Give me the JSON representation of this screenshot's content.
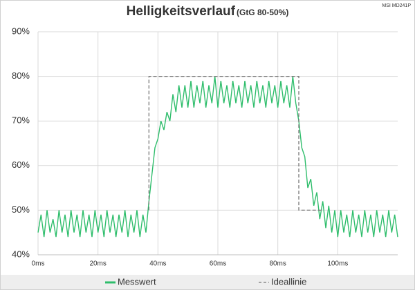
{
  "chart_data": {
    "type": "line",
    "title": "Helligkeitsverlauf",
    "subtitle": "(GtG 80-50%)",
    "watermark": "MSI MD241P",
    "xlim": [
      0,
      120
    ],
    "ylim": [
      40,
      90
    ],
    "grid": true,
    "xticks": [
      {
        "value": 0,
        "label": "0ms"
      },
      {
        "value": 20,
        "label": "20ms"
      },
      {
        "value": 40,
        "label": "40ms"
      },
      {
        "value": 60,
        "label": "60ms"
      },
      {
        "value": 80,
        "label": "80ms"
      },
      {
        "value": 100,
        "label": "100ms"
      }
    ],
    "yticks": [
      {
        "value": 40,
        "label": "40%"
      },
      {
        "value": 50,
        "label": "50%"
      },
      {
        "value": 60,
        "label": "60%"
      },
      {
        "value": 70,
        "label": "70%"
      },
      {
        "value": 80,
        "label": "80%"
      },
      {
        "value": 90,
        "label": "90%"
      }
    ],
    "series": [
      {
        "name": "Messwert",
        "color": "#2ebd6b",
        "dash": false,
        "x": [
          0,
          1,
          2,
          3,
          4,
          5,
          6,
          7,
          8,
          9,
          10,
          11,
          12,
          13,
          14,
          15,
          16,
          17,
          18,
          19,
          20,
          21,
          22,
          23,
          24,
          25,
          26,
          27,
          28,
          29,
          30,
          31,
          32,
          33,
          34,
          35,
          36,
          37,
          38,
          39,
          40,
          41,
          42,
          43,
          44,
          45,
          46,
          47,
          48,
          49,
          50,
          51,
          52,
          53,
          54,
          55,
          56,
          57,
          58,
          59,
          60,
          61,
          62,
          63,
          64,
          65,
          66,
          67,
          68,
          69,
          70,
          71,
          72,
          73,
          74,
          75,
          76,
          77,
          78,
          79,
          80,
          81,
          82,
          83,
          84,
          85,
          86,
          87,
          88,
          89,
          90,
          91,
          92,
          93,
          94,
          95,
          96,
          97,
          98,
          99,
          100,
          101,
          102,
          103,
          104,
          105,
          106,
          107,
          108,
          109,
          110,
          111,
          112,
          113,
          114,
          115,
          116,
          117,
          118,
          119,
          120
        ],
        "values": [
          45,
          49,
          44,
          50,
          45,
          48,
          44,
          50,
          45,
          49,
          44,
          50,
          45,
          49,
          44,
          50,
          45,
          49,
          44,
          50,
          45,
          49,
          44,
          50,
          45,
          49,
          44,
          49,
          45,
          50,
          44,
          49,
          45,
          50,
          44,
          49,
          45,
          52,
          58,
          64,
          66,
          70,
          68,
          72,
          70,
          76,
          72,
          78,
          73,
          78,
          73,
          79,
          73,
          78,
          74,
          79,
          73,
          78,
          74,
          80,
          73,
          79,
          74,
          78,
          73,
          79,
          74,
          78,
          73,
          79,
          74,
          78,
          73,
          79,
          74,
          78,
          73,
          79,
          74,
          78,
          73,
          79,
          74,
          78,
          73,
          80,
          74,
          70,
          64,
          62,
          55,
          57,
          51,
          54,
          48,
          52,
          46,
          51,
          45,
          50,
          44,
          50,
          45,
          49,
          44,
          50,
          45,
          49,
          44,
          50,
          45,
          49,
          44,
          50,
          45,
          49,
          44,
          50,
          45,
          49,
          44
        ]
      },
      {
        "name": "Ideallinie",
        "color": "#777777",
        "dash": true,
        "x": [
          37,
          37,
          87,
          87,
          95
        ],
        "values": [
          50,
          80,
          80,
          50,
          50
        ]
      }
    ]
  }
}
